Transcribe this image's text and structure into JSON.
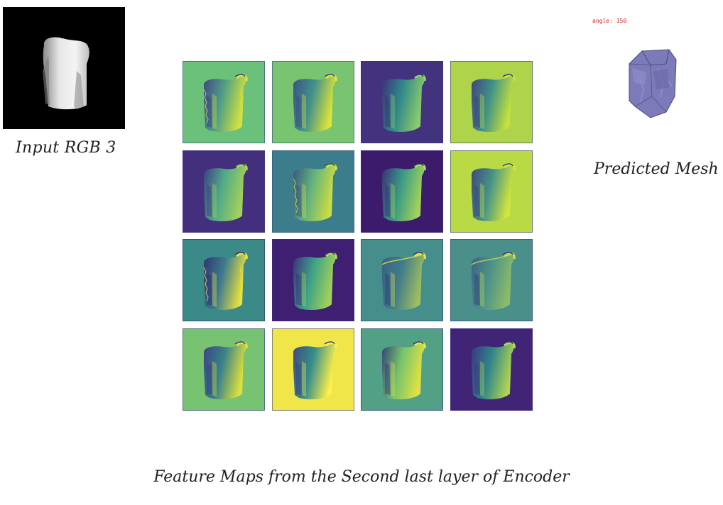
{
  "input": {
    "label": "Input RGB 3"
  },
  "mesh": {
    "angle_text": "angle: 150",
    "label": "Predicted Mesh"
  },
  "caption": "Feature Maps from the Second last layer of Encoder",
  "feature_maps": [
    {
      "bg": "#6cc17a",
      "shape": "#4f9e86",
      "hi": "#d8e33a",
      "lo": "#3b3f85",
      "style": "noisy"
    },
    {
      "bg": "#78c471",
      "shape": "#3f8f8c",
      "hi": "#e2e535",
      "lo": "#3a4985",
      "style": "solid"
    },
    {
      "bg": "#43327e",
      "shape": "#2f8d8b",
      "hi": "#8ed36a",
      "lo": "#3d2f78",
      "style": "solid"
    },
    {
      "bg": "#aed44b",
      "shape": "#3a8f8b",
      "hi": "#c7e23b",
      "lo": "#3b3a7d",
      "style": "solid"
    },
    {
      "bg": "#432f7c",
      "shape": "#53b08a",
      "hi": "#a7da55",
      "lo": "#3c3d86",
      "style": "solid"
    },
    {
      "bg": "#3c7d8c",
      "shape": "#66b57c",
      "hi": "#d1e23f",
      "lo": "#39527f",
      "style": "noisy"
    },
    {
      "bg": "#3c1b6c",
      "shape": "#3aa187",
      "hi": "#a8dc58",
      "lo": "#3b2d78",
      "style": "solid"
    },
    {
      "bg": "#b9da45",
      "shape": "#3f8f8b",
      "hi": "#d6e53c",
      "lo": "#3a3e80",
      "style": "solid"
    },
    {
      "bg": "#3b8a88",
      "shape": "#3d7a8d",
      "hi": "#f0e63a",
      "lo": "#2e2f70",
      "style": "noisy"
    },
    {
      "bg": "#3f1f71",
      "shape": "#3ea889",
      "hi": "#a6db56",
      "lo": "#3a3079",
      "style": "solid"
    },
    {
      "bg": "#458e8c",
      "shape": "#3c6e8a",
      "hi": "#e8e43b",
      "lo": "#2f3a7a",
      "style": "faint"
    },
    {
      "bg": "#4a8f89",
      "shape": "#4f968a",
      "hi": "#c4df4a",
      "lo": "#2f3d7c",
      "style": "faint"
    },
    {
      "bg": "#78c371",
      "shape": "#367f8c",
      "hi": "#e3e236",
      "lo": "#393b83",
      "style": "solid"
    },
    {
      "bg": "#f0e64a",
      "shape": "#2c8a8d",
      "hi": "#fdf04a",
      "lo": "#3a3e82",
      "style": "solid"
    },
    {
      "bg": "#52a086",
      "shape": "#78c56e",
      "hi": "#e9e53b",
      "lo": "#333a7a",
      "style": "solid"
    },
    {
      "bg": "#402475",
      "shape": "#2f8b8b",
      "hi": "#b6dc4f",
      "lo": "#3c3481",
      "style": "solid"
    }
  ]
}
